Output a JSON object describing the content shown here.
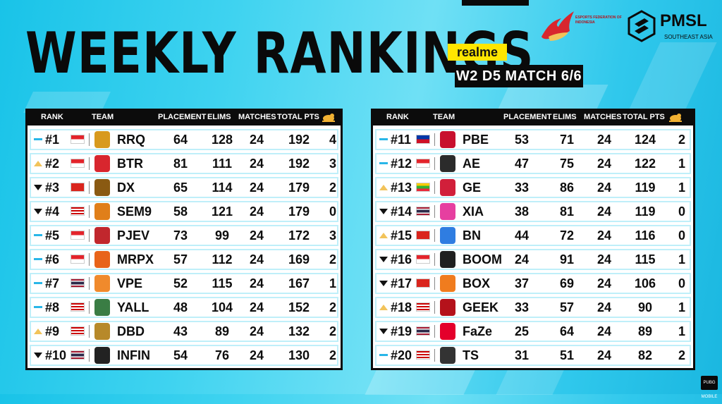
{
  "header": {
    "title": "WEEKLY RANKINGS",
    "sponsor": "realme",
    "match_label": "W2 D5 MATCH 6/6",
    "league_name": "PMSL",
    "league_region": "SOUTHEAST ASIA",
    "federation_name": "ESPORTS FEDERATION OF INDONESIA"
  },
  "columns": {
    "rank": "RANK",
    "team": "TEAM",
    "placement": "PLACEMENT",
    "elims": "ELIMS",
    "matches": "MATCHES",
    "total": "TOTAL PTS",
    "chicken_icon": "chicken-dinner-icon"
  },
  "colors": {
    "accent_yellow": "#ffe600",
    "trend_up": "#f2c35a",
    "trend_same": "#29b6e8",
    "trend_down": "#111111"
  },
  "left_rows": [
    {
      "rank": "#1",
      "trend": "same",
      "flag": "ID",
      "team": "RRQ",
      "placement": "64",
      "elims": "128",
      "matches": "24",
      "total": "192",
      "wins": "4",
      "logo_color": "#d89a1e"
    },
    {
      "rank": "#2",
      "trend": "up",
      "flag": "ID",
      "team": "BTR",
      "placement": "81",
      "elims": "111",
      "matches": "24",
      "total": "192",
      "wins": "3",
      "logo_color": "#d8262e"
    },
    {
      "rank": "#3",
      "trend": "down",
      "flag": "VN",
      "team": "DX",
      "placement": "65",
      "elims": "114",
      "matches": "24",
      "total": "179",
      "wins": "2",
      "logo_color": "#8a5a12"
    },
    {
      "rank": "#4",
      "trend": "down",
      "flag": "MY",
      "team": "SEM9",
      "placement": "58",
      "elims": "121",
      "matches": "24",
      "total": "179",
      "wins": "0",
      "logo_color": "#e07f1a"
    },
    {
      "rank": "#5",
      "trend": "same",
      "flag": "ID",
      "team": "PJEV",
      "placement": "73",
      "elims": "99",
      "matches": "24",
      "total": "172",
      "wins": "3",
      "logo_color": "#c1272d"
    },
    {
      "rank": "#6",
      "trend": "same",
      "flag": "ID",
      "team": "MRPX",
      "placement": "57",
      "elims": "112",
      "matches": "24",
      "total": "169",
      "wins": "2",
      "logo_color": "#e8641a"
    },
    {
      "rank": "#7",
      "trend": "same",
      "flag": "TH",
      "team": "VPE",
      "placement": "52",
      "elims": "115",
      "matches": "24",
      "total": "167",
      "wins": "1",
      "logo_color": "#f08a2c"
    },
    {
      "rank": "#8",
      "trend": "same",
      "flag": "MY",
      "team": "YALL",
      "placement": "48",
      "elims": "104",
      "matches": "24",
      "total": "152",
      "wins": "2",
      "logo_color": "#3a7d44"
    },
    {
      "rank": "#9",
      "trend": "up",
      "flag": "MY",
      "team": "DBD",
      "placement": "43",
      "elims": "89",
      "matches": "24",
      "total": "132",
      "wins": "2",
      "logo_color": "#b7892a"
    },
    {
      "rank": "#10",
      "trend": "down",
      "flag": "TH",
      "team": "INFIN",
      "placement": "54",
      "elims": "76",
      "matches": "24",
      "total": "130",
      "wins": "2",
      "logo_color": "#222222"
    }
  ],
  "right_rows": [
    {
      "rank": "#11",
      "trend": "same",
      "flag": "PH",
      "team": "PBE",
      "placement": "53",
      "elims": "71",
      "matches": "24",
      "total": "124",
      "wins": "2",
      "logo_color": "#c8102e"
    },
    {
      "rank": "#12",
      "trend": "same",
      "flag": "ID",
      "team": "AE",
      "placement": "47",
      "elims": "75",
      "matches": "24",
      "total": "122",
      "wins": "1",
      "logo_color": "#2b2b2b"
    },
    {
      "rank": "#13",
      "trend": "up",
      "flag": "MM",
      "team": "GE",
      "placement": "33",
      "elims": "86",
      "matches": "24",
      "total": "119",
      "wins": "1",
      "logo_color": "#d11f3a"
    },
    {
      "rank": "#14",
      "trend": "down",
      "flag": "TH",
      "team": "XIA",
      "placement": "38",
      "elims": "81",
      "matches": "24",
      "total": "119",
      "wins": "0",
      "logo_color": "#e63fa0"
    },
    {
      "rank": "#15",
      "trend": "up",
      "flag": "VN",
      "team": "BN",
      "placement": "44",
      "elims": "72",
      "matches": "24",
      "total": "116",
      "wins": "0",
      "logo_color": "#2f7de1"
    },
    {
      "rank": "#16",
      "trend": "down",
      "flag": "ID",
      "team": "BOOM",
      "placement": "24",
      "elims": "91",
      "matches": "24",
      "total": "115",
      "wins": "1",
      "logo_color": "#1f1f1f"
    },
    {
      "rank": "#17",
      "trend": "down",
      "flag": "VN",
      "team": "BOX",
      "placement": "37",
      "elims": "69",
      "matches": "24",
      "total": "106",
      "wins": "0",
      "logo_color": "#f07c1e"
    },
    {
      "rank": "#18",
      "trend": "up",
      "flag": "MY",
      "team": "GEEK",
      "placement": "33",
      "elims": "57",
      "matches": "24",
      "total": "90",
      "wins": "1",
      "logo_color": "#b5121b"
    },
    {
      "rank": "#19",
      "trend": "down",
      "flag": "TH",
      "team": "FaZe",
      "placement": "25",
      "elims": "64",
      "matches": "24",
      "total": "89",
      "wins": "1",
      "logo_color": "#e4002b"
    },
    {
      "rank": "#20",
      "trend": "same",
      "flag": "MY",
      "team": "TS",
      "placement": "31",
      "elims": "51",
      "matches": "24",
      "total": "82",
      "wins": "2",
      "logo_color": "#333333"
    }
  ],
  "watermark": "PUBG MOBILE"
}
